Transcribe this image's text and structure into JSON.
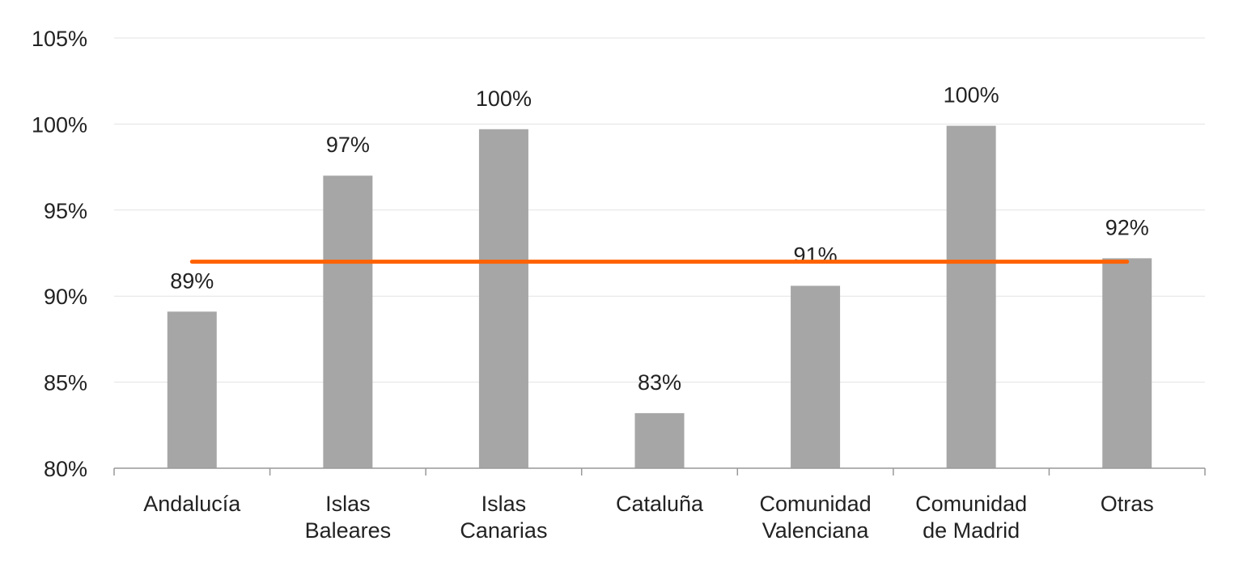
{
  "chart_data": {
    "type": "bar",
    "title": "",
    "xlabel": "",
    "ylabel": "",
    "categories": [
      [
        "Andalucía"
      ],
      [
        "Islas",
        "Baleares"
      ],
      [
        "Islas",
        "Canarias"
      ],
      [
        "Cataluña"
      ],
      [
        "Comunidad",
        "Valenciana"
      ],
      [
        "Comunidad",
        "de Madrid"
      ],
      [
        "Otras"
      ]
    ],
    "values": [
      89.1,
      97.0,
      99.7,
      83.2,
      90.6,
      99.9,
      92.2
    ],
    "data_labels": [
      "89%",
      "97%",
      "100%",
      "83%",
      "91%",
      "100%",
      "92%"
    ],
    "reference_line": {
      "value": 92.0
    },
    "ylim": [
      80,
      105
    ],
    "yticks": [
      {
        "value": 80,
        "label": "80%"
      },
      {
        "value": 85,
        "label": "85%"
      },
      {
        "value": 90,
        "label": "90%"
      },
      {
        "value": 95,
        "label": "95%"
      },
      {
        "value": 100,
        "label": "100%"
      },
      {
        "value": 105,
        "label": "105%"
      }
    ],
    "grid": true,
    "legend": "none",
    "colors": {
      "bar": "#a6a6a6",
      "reference_line": "#ff6200",
      "grid": "#e3e3e3",
      "axis": "#999999",
      "text": "#222222"
    }
  }
}
